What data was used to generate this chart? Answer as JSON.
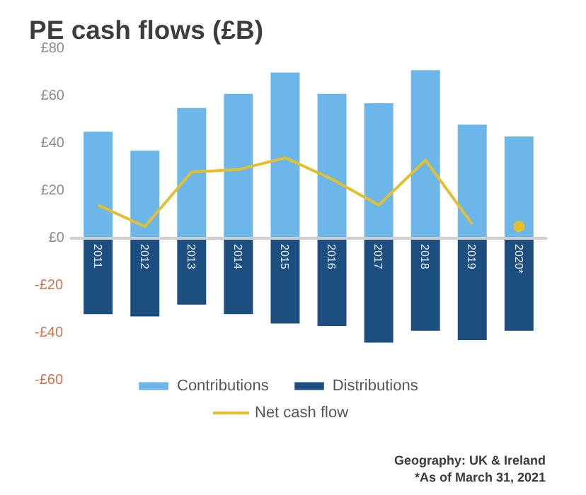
{
  "chart_data": {
    "type": "bar",
    "title": "PE cash flows (£B)",
    "categories": [
      "2011",
      "2012",
      "2013",
      "2014",
      "2015",
      "2016",
      "2017",
      "2018",
      "2019",
      "2020*"
    ],
    "series": [
      {
        "name": "Contributions",
        "color": "#6db6ea",
        "values": [
          45,
          37,
          55,
          61,
          70,
          61,
          57,
          71,
          48,
          43
        ]
      },
      {
        "name": "Distributions",
        "color": "#1c4e80",
        "values": [
          -32,
          -33,
          -28,
          -32,
          -36,
          -37,
          -44,
          -39,
          -43,
          -39
        ]
      },
      {
        "name": "Net cash flow",
        "type": "line",
        "color": "#e3bf2d",
        "values": [
          14,
          5,
          28,
          29,
          34,
          25,
          14,
          33,
          6,
          null
        ]
      },
      {
        "type": "scatter",
        "marker": "circle",
        "color": "#e3bf2d",
        "values": [
          null,
          null,
          null,
          null,
          null,
          null,
          null,
          null,
          null,
          5
        ]
      }
    ],
    "stacked": true,
    "ylim": [
      -60,
      80
    ],
    "yticks": [
      {
        "value": 80,
        "label": "£80"
      },
      {
        "value": 60,
        "label": "£60"
      },
      {
        "value": 40,
        "label": "£40"
      },
      {
        "value": 20,
        "label": "£20"
      },
      {
        "value": 0,
        "label": "£0"
      },
      {
        "value": -20,
        "label": "-£20"
      },
      {
        "value": -40,
        "label": "-£40"
      },
      {
        "value": -60,
        "label": "-£60"
      }
    ],
    "legend": "bottom",
    "annotations": [
      "Geography: UK & Ireland",
      "*As of March 31, 2021"
    ]
  }
}
